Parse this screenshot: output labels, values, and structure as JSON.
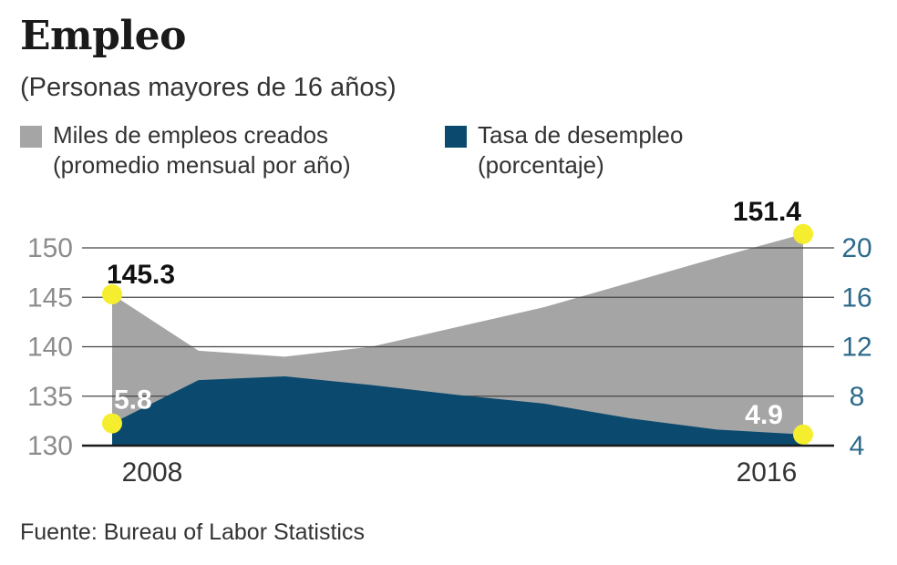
{
  "header": {
    "title": "Empleo",
    "subtitle": "(Personas mayores de 16 años)"
  },
  "legend": {
    "employment": {
      "line1": "Miles de empleos creados",
      "line2": "(promedio mensual por año)",
      "color": "#a5a5a5"
    },
    "unemployment": {
      "line1": "Tasa de desempleo",
      "line2": "(porcentaje)",
      "color": "#0b4a6e"
    }
  },
  "source": "Fuente: Bureau of Labor Statistics",
  "chart_data": {
    "type": "area",
    "x": [
      2008,
      2009,
      2010,
      2011,
      2012,
      2013,
      2014,
      2015,
      2016
    ],
    "x_tick_labels": [
      "2008",
      "2016"
    ],
    "series": [
      {
        "name": "Miles de empleos creados",
        "axis": "left",
        "values": [
          145.3,
          139.6,
          139.0,
          140.0,
          142.0,
          144.0,
          146.5,
          149.0,
          151.4
        ],
        "color": "#a5a5a5"
      },
      {
        "name": "Tasa de desempleo",
        "axis": "right",
        "values": [
          5.8,
          9.3,
          9.6,
          8.9,
          8.1,
          7.4,
          6.2,
          5.3,
          4.9
        ],
        "color": "#0b4a6e"
      }
    ],
    "y_left": {
      "ylim": [
        130,
        150
      ],
      "ticks": [
        150,
        145,
        140,
        135,
        130
      ]
    },
    "y_right": {
      "ylim": [
        4,
        20
      ],
      "ticks": [
        20,
        16,
        12,
        8,
        4
      ]
    },
    "annotations": [
      {
        "series": 0,
        "index": 0,
        "text": "145.3"
      },
      {
        "series": 0,
        "index": 8,
        "text": "151.4"
      },
      {
        "series": 1,
        "index": 0,
        "text": "5.8"
      },
      {
        "series": 1,
        "index": 8,
        "text": "4.9"
      }
    ],
    "highlight_color": "#f5ee2e",
    "grid": true
  }
}
